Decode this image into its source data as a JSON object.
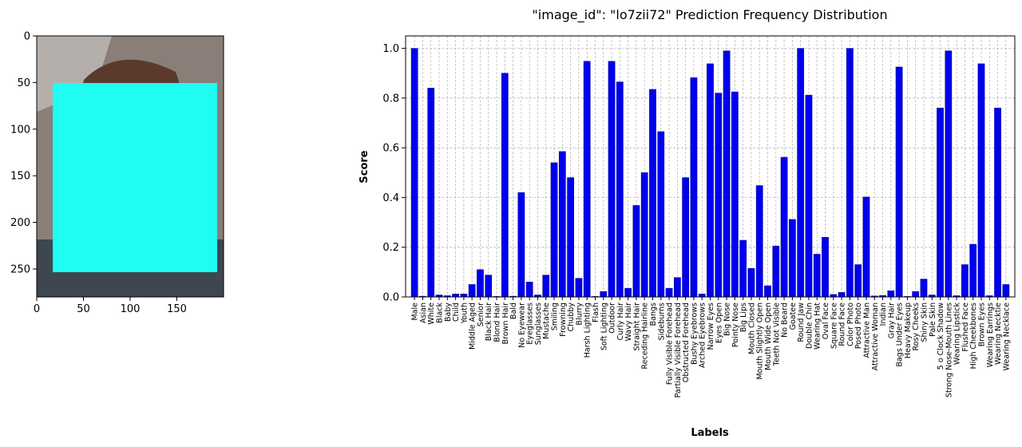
{
  "image_panel": {
    "background_color": "#8a7e78",
    "mask_color": "#1ffcf2",
    "x_ticks": [
      "0",
      "50",
      "100",
      "150"
    ],
    "y_ticks": [
      "0",
      "50",
      "100",
      "150",
      "200",
      "250"
    ]
  },
  "chart_data": {
    "type": "bar",
    "title": "\"image_id\": \"lo7zii72\" Prediction Frequency Distribution",
    "xlabel": "Labels",
    "ylabel": "Score",
    "ylim": [
      0,
      1.05
    ],
    "yticks": [
      "0.0",
      "0.2",
      "0.4",
      "0.6",
      "0.8",
      "1.0"
    ],
    "grid": true,
    "bar_color": "#0000ee",
    "categories": [
      "Male",
      "Asian",
      "White",
      "Black",
      "Baby",
      "Child",
      "Youth",
      "Middle Aged",
      "Senior",
      "Black Hair",
      "Blond Hair",
      "Brown Hair",
      "Bald",
      "No Eyewear",
      "Eyeglasses",
      "Sunglasses",
      "Mustache",
      "Smiling",
      "Frowning",
      "Chubby",
      "Blurry",
      "Harsh Lighting",
      "Flash",
      "Soft Lighting",
      "Outdoor",
      "Curly Hair",
      "Wavy Hair",
      "Straight Hair",
      "Receding Hairline",
      "Bangs",
      "Sideburns",
      "Fully Visible Forehead",
      "Partially Visible Forehead",
      "Obstructed Forehead",
      "Bushy Eyebrows",
      "Arched Eyebrows",
      "Narrow Eyes",
      "Eyes Open",
      "Big Nose",
      "Pointy Nose",
      "Big Lips",
      "Mouth Closed",
      "Mouth Slightly Open",
      "Mouth Wide Open",
      "Teeth Not Visible",
      "No Beard",
      "Goatee",
      "Round Jaw",
      "Double Chin",
      "Wearing Hat",
      "Oval Face",
      "Square Face",
      "Round Face",
      "Color Photo",
      "Posed Photo",
      "Attractive Man",
      "Attractive Woman",
      "Indian",
      "Gray Hair",
      "Bags Under Eyes",
      "Heavy Makeup",
      "Rosy Cheeks",
      "Shiny Skin",
      "Pale Skin",
      "5 o Clock Shadow",
      "Strong Nose-Mouth Lines",
      "Wearing Lipstick",
      "Flushed Face",
      "High Cheekbones",
      "Brown Eyes",
      "Wearing Earrings",
      "Wearing Necktie",
      "Wearing Necklace"
    ],
    "values": [
      1.0,
      0.003,
      0.84,
      0.008,
      0.005,
      0.012,
      0.012,
      0.05,
      0.11,
      0.088,
      0.002,
      0.9,
      0.003,
      0.42,
      0.06,
      0.008,
      0.088,
      0.54,
      0.585,
      0.48,
      0.075,
      0.948,
      0.002,
      0.022,
      0.948,
      0.865,
      0.035,
      0.368,
      0.5,
      0.835,
      0.665,
      0.035,
      0.078,
      0.48,
      0.882,
      0.012,
      0.938,
      0.82,
      0.99,
      0.825,
      0.228,
      0.115,
      0.448,
      0.045,
      0.205,
      0.562,
      0.312,
      1.0,
      0.812,
      0.172,
      0.24,
      0.01,
      0.018,
      1.0,
      0.13,
      0.402,
      0.004,
      0.006,
      0.025,
      0.925,
      0.002,
      0.022,
      0.072,
      0.008,
      0.76,
      0.99,
      0.005,
      0.13,
      0.212,
      0.938,
      0.005,
      0.76,
      0.05
    ]
  }
}
